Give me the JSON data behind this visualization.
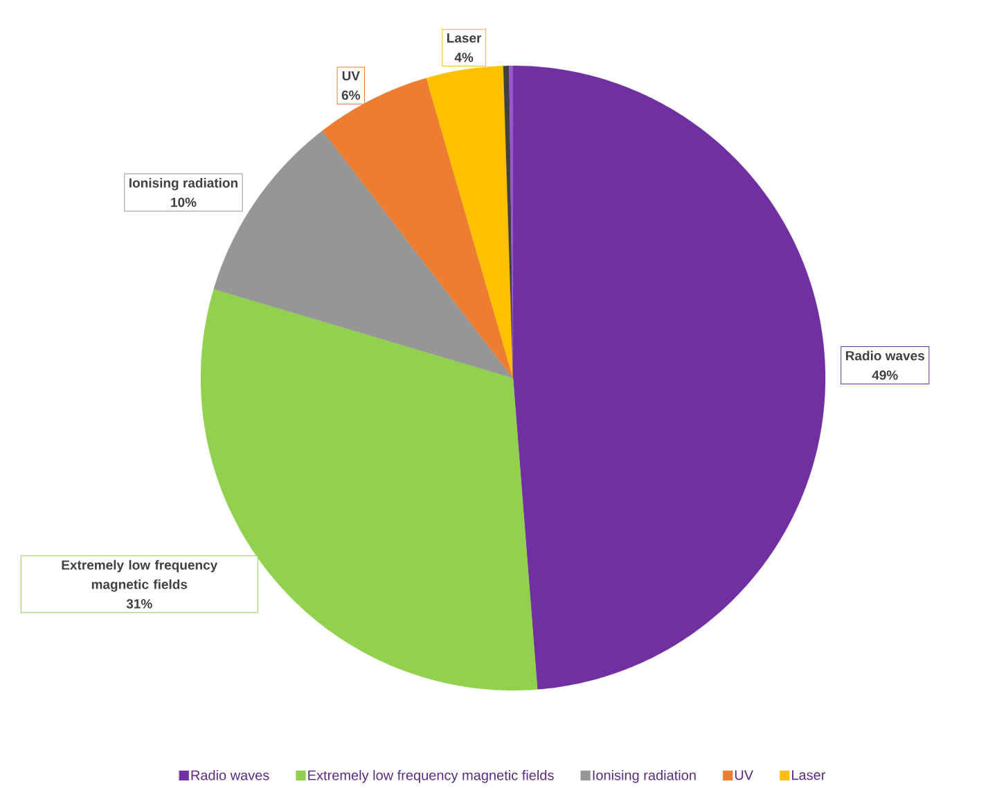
{
  "chart_data": {
    "type": "pie",
    "categories": [
      "Radio waves",
      "Extremely low frequency magnetic fields",
      "Ionising radiation",
      "UV",
      "Laser",
      null,
      null
    ],
    "values": [
      49,
      31,
      10,
      6,
      4,
      0.3,
      0.2
    ],
    "value_labels": [
      "49%",
      "31%",
      "10%",
      "6%",
      "4%",
      null,
      null
    ],
    "colors": [
      "#7030a0",
      "#92d050",
      "#969696",
      "#ed7d31",
      "#ffc000",
      "#404040",
      "#9955cc"
    ],
    "legend": "bottom"
  }
}
